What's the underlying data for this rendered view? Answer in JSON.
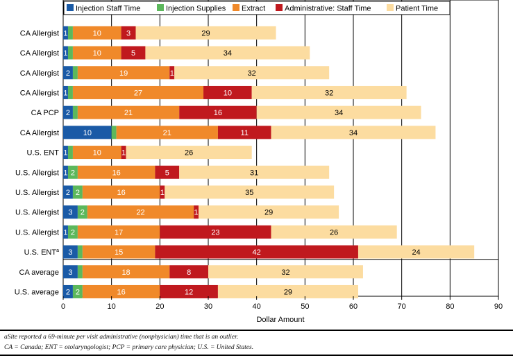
{
  "chart_data": {
    "type": "bar",
    "orientation": "horizontal",
    "stacked": true,
    "title": "",
    "xlabel": "Dollar Amount",
    "ylabel": "",
    "xlim": [
      0,
      90
    ],
    "xticks": [
      "0",
      "10",
      "20",
      "30",
      "40",
      "50",
      "60",
      "70",
      "80",
      "90"
    ],
    "grid": "vertical",
    "legend_position": "top",
    "categories": [
      "CA Allergist",
      "CA Allergist",
      "CA Allergist",
      "CA Allergist",
      "CA PCP",
      "CA Allergist",
      "U.S. ENT",
      "U.S. Allergist",
      "U.S. Allergist",
      "U.S. Allergist",
      "U.S. Allergist",
      "U.S. ENT",
      "CA average",
      "U.S. average"
    ],
    "category_markers": [
      "",
      "",
      "",
      "",
      "",
      "",
      "",
      "",
      "",
      "",
      "",
      "a",
      "",
      ""
    ],
    "series": [
      {
        "name": "Injection Staff Time",
        "color": "#1a5aa6",
        "values": [
          1,
          1,
          2,
          1,
          2,
          10,
          1,
          1,
          2,
          3,
          1,
          3,
          3,
          2
        ],
        "labels": [
          "1",
          "1",
          "2",
          "1",
          "2",
          "10",
          "1",
          "1",
          "2",
          "3",
          "1",
          "3",
          "3",
          "2"
        ]
      },
      {
        "name": "Injection Supplies",
        "color": "#5cb85c",
        "values": [
          1,
          1,
          1,
          1,
          1,
          1,
          1,
          2,
          2,
          2,
          2,
          1,
          1,
          2
        ],
        "labels": [
          "",
          "",
          "",
          "",
          "",
          "",
          "",
          "2",
          "2",
          "2",
          "2",
          "",
          "",
          "2"
        ]
      },
      {
        "name": "Extract",
        "color": "#f0892a",
        "values": [
          10,
          10,
          19,
          27,
          21,
          21,
          10,
          16,
          16,
          22,
          17,
          15,
          18,
          16
        ],
        "labels": [
          "10",
          "10",
          "19",
          "27",
          "21",
          "21",
          "10",
          "16",
          "16",
          "22",
          "17",
          "15",
          "18",
          "16"
        ]
      },
      {
        "name": "Administrative: Staff Time",
        "color": "#c0191e",
        "values": [
          3,
          5,
          1,
          10,
          16,
          11,
          1,
          5,
          1,
          1,
          23,
          42,
          8,
          12
        ],
        "labels": [
          "3",
          "5",
          "1",
          "10",
          "16",
          "11",
          "1",
          "5",
          "1",
          "1",
          "23",
          "42",
          "8",
          "12"
        ]
      },
      {
        "name": "Patient Time",
        "color": "#fcdca0",
        "values": [
          29,
          34,
          32,
          32,
          34,
          34,
          26,
          31,
          35,
          29,
          26,
          24,
          32,
          29
        ],
        "labels": [
          "29",
          "34",
          "32",
          "32",
          "34",
          "34",
          "26",
          "31",
          "35",
          "29",
          "26",
          "24",
          "32",
          "29"
        ]
      }
    ]
  },
  "footnotes": {
    "outlier_note": "aSite reported a 69-minute per visit administrative (nonphysician) time that is an outlier.",
    "abbreviations": "CA = Canada; ENT = otolaryngologist; PCP = primary care physician; U.S. = United States."
  }
}
